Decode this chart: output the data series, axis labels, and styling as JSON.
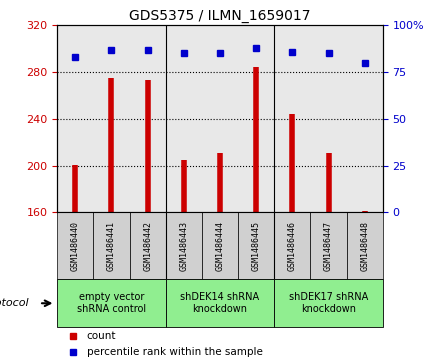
{
  "title": "GDS5375 / ILMN_1659017",
  "samples": [
    "GSM1486440",
    "GSM1486441",
    "GSM1486442",
    "GSM1486443",
    "GSM1486444",
    "GSM1486445",
    "GSM1486446",
    "GSM1486447",
    "GSM1486448"
  ],
  "counts": [
    201,
    275,
    273,
    205,
    211,
    284,
    244,
    211,
    161
  ],
  "percentiles": [
    83,
    87,
    87,
    85,
    85,
    88,
    86,
    85,
    80
  ],
  "ylim_left": [
    160,
    320
  ],
  "ylim_right": [
    0,
    100
  ],
  "yticks_left": [
    160,
    200,
    240,
    280,
    320
  ],
  "yticks_right": [
    0,
    25,
    50,
    75,
    100
  ],
  "bar_color": "#cc0000",
  "dot_color": "#0000cc",
  "groups": [
    {
      "label": "empty vector\nshRNA control",
      "start": 0,
      "end": 3
    },
    {
      "label": "shDEK14 shRNA\nknockdown",
      "start": 3,
      "end": 6
    },
    {
      "label": "shDEK17 shRNA\nknockdown",
      "start": 6,
      "end": 9
    }
  ],
  "legend_count_label": "count",
  "legend_percentile_label": "percentile rank within the sample",
  "protocol_label": "protocol",
  "sample_box_color": "#d0d0d0",
  "group_box_color": "#90EE90",
  "bg_color": "#e8e8e8"
}
